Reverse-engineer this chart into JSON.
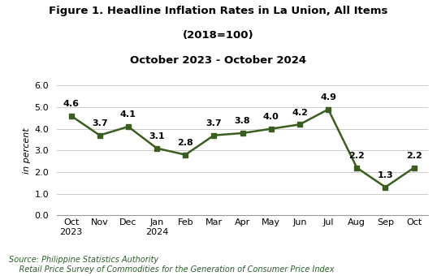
{
  "title_line1": "Figure 1. Headline Inflation Rates in La Union, All Items",
  "title_line2": "(2018=100)",
  "title_line3": "October 2023 - October 2024",
  "x_labels": [
    "Oct\n2023",
    "Nov",
    "Dec",
    "Jan\n2024",
    "Feb",
    "Mar",
    "Apr",
    "May",
    "Jun",
    "Jul",
    "Aug",
    "Sep",
    "Oct"
  ],
  "values": [
    4.6,
    3.7,
    4.1,
    3.1,
    2.8,
    3.7,
    3.8,
    4.0,
    4.2,
    4.9,
    2.2,
    1.3,
    2.2
  ],
  "line_color": "#3a5e1f",
  "marker_color": "#3a5e1f",
  "marker_style": "s",
  "marker_size": 5,
  "ylim": [
    0.0,
    6.0
  ],
  "yticks": [
    0.0,
    1.0,
    2.0,
    3.0,
    4.0,
    5.0,
    6.0
  ],
  "ylabel": "in percent",
  "source_line1": "Source: Philippine Statistics Authority",
  "source_line2": "    Retail Price Survey of Commodities for the Generation of Consumer Price Index",
  "bg_color": "#ffffff",
  "grid_color": "#cccccc",
  "title_fontsize": 9.5,
  "tick_fontsize": 8,
  "annotation_fontsize": 8,
  "ylabel_fontsize": 8,
  "source_fontsize": 7
}
